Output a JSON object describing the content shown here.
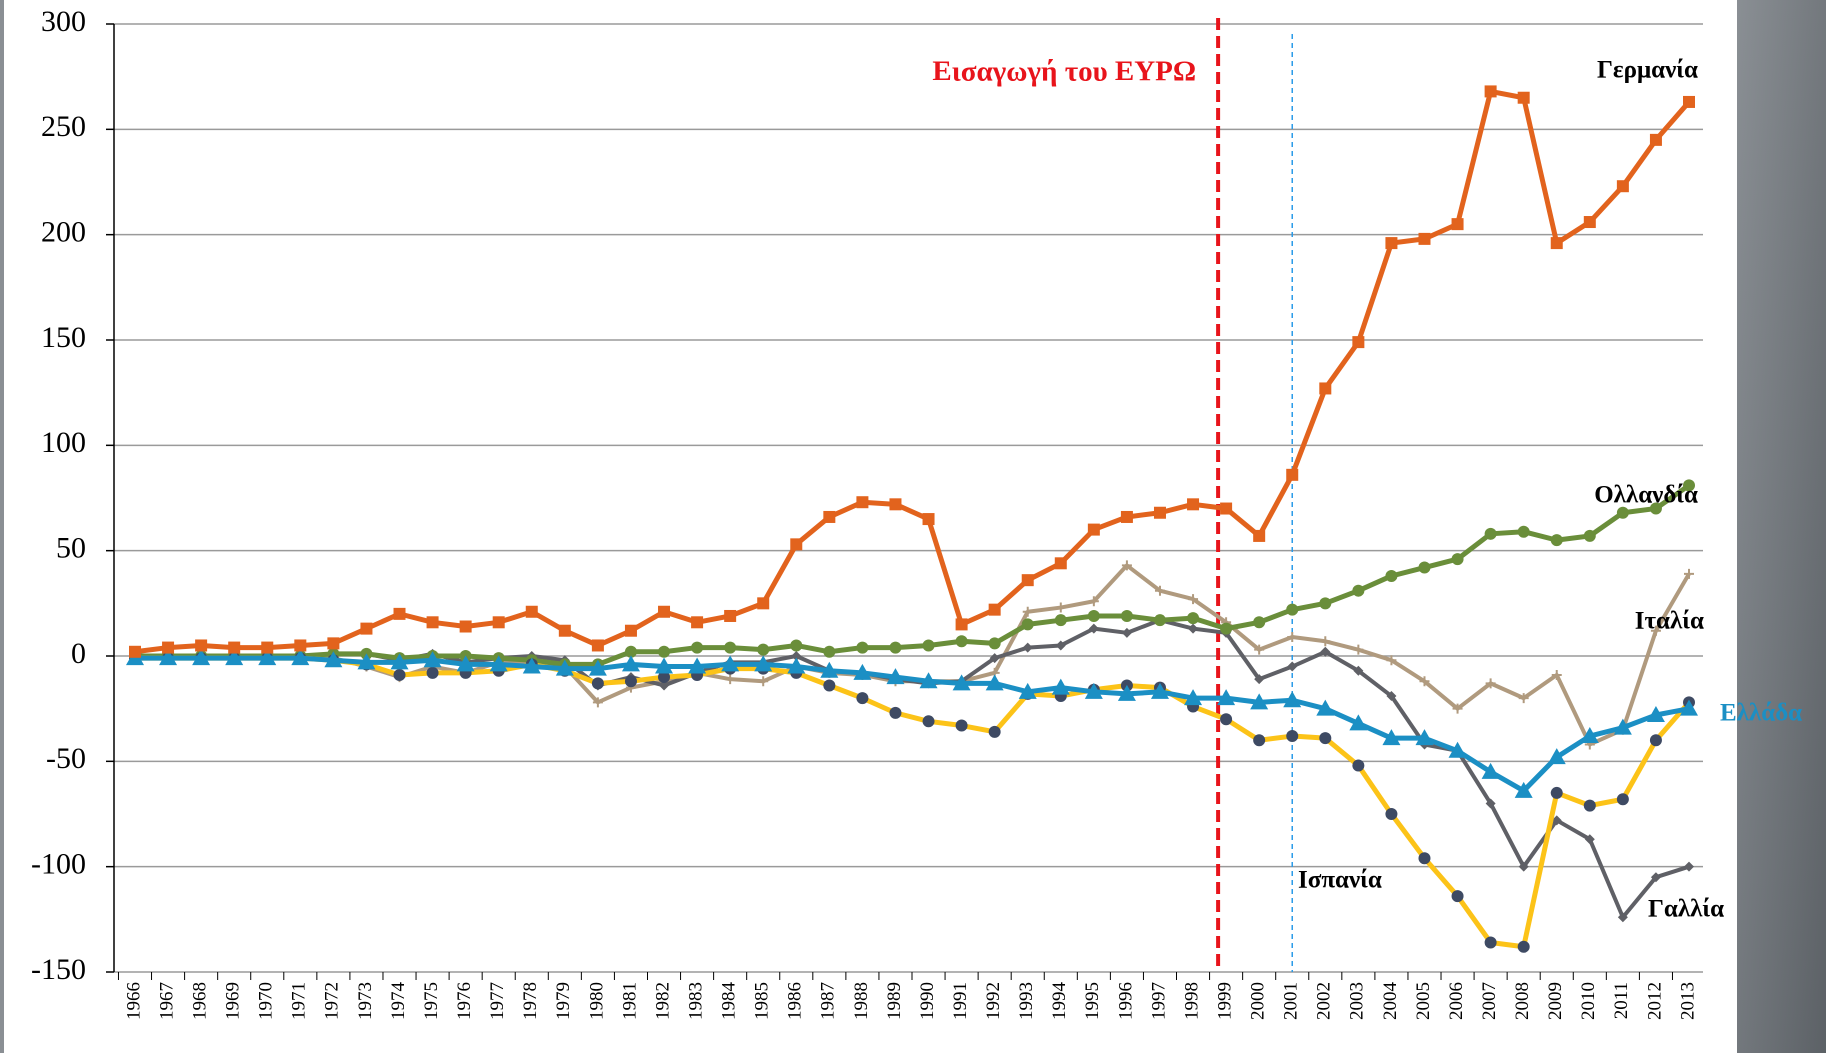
{
  "chart_data": {
    "type": "line",
    "categories": [
      "1966",
      "1967",
      "1968",
      "1969",
      "1970",
      "1971",
      "1972",
      "1973",
      "1974",
      "1975",
      "1976",
      "1977",
      "1978",
      "1979",
      "1980",
      "1981",
      "1982",
      "1983",
      "1984",
      "1985",
      "1986",
      "1987",
      "1988",
      "1989",
      "1990",
      "1991",
      "1992",
      "1993",
      "1994",
      "1995",
      "1996",
      "1997",
      "1998",
      "1999",
      "2000",
      "2001",
      "2002",
      "2003",
      "2004",
      "2005",
      "2006",
      "2007",
      "2008",
      "2009",
      "2010",
      "2011",
      "2012",
      "2013"
    ],
    "ylim": [
      -150,
      300
    ],
    "yticks": [
      -150,
      -100,
      -50,
      0,
      50,
      100,
      150,
      200,
      250,
      300
    ],
    "grid": true,
    "annotations": [
      {
        "text": "Εισαγωγή του ΕΥΡΩ",
        "x": "1999",
        "color": "#e8141b",
        "style": "dashed"
      }
    ],
    "vlines": [
      {
        "x": "2001",
        "color": "#2a9ae8",
        "style": "dashed"
      }
    ],
    "series": [
      {
        "name": "Γερμανία",
        "color": "#e2631d",
        "marker": "square",
        "marker_color": "#e2631d",
        "label_color": "#000000",
        "values": [
          2,
          4,
          5,
          4,
          4,
          5,
          6,
          13,
          20,
          16,
          14,
          16,
          21,
          12,
          5,
          12,
          21,
          16,
          19,
          25,
          53,
          66,
          73,
          72,
          65,
          15,
          22,
          36,
          44,
          60,
          66,
          68,
          72,
          70,
          57,
          86,
          127,
          149,
          196,
          198,
          205,
          268,
          265,
          196,
          206,
          223,
          245,
          263
        ]
      },
      {
        "name": "Ολλανδία",
        "color": "#6a8e3a",
        "marker": "circle",
        "marker_color": "#6a8e3a",
        "label_color": "#000000",
        "values": [
          0,
          0,
          0,
          0,
          0,
          0,
          1,
          1,
          -1,
          0,
          0,
          -1,
          -2,
          -4,
          -4,
          2,
          2,
          4,
          4,
          3,
          5,
          2,
          4,
          4,
          5,
          7,
          6,
          15,
          17,
          19,
          19,
          17,
          18,
          13,
          16,
          22,
          25,
          31,
          38,
          42,
          46,
          58,
          59,
          55,
          57,
          68,
          70,
          81
        ]
      },
      {
        "name": "Ιταλία",
        "color": "#b09a7e",
        "marker": "plus",
        "marker_color": "#b09a7e",
        "label_color": "#000000",
        "values": [
          0,
          0,
          0,
          0,
          0,
          0,
          -1,
          -5,
          -10,
          -5,
          -8,
          -3,
          -3,
          -5,
          -22,
          -15,
          -12,
          -8,
          -11,
          -12,
          -5,
          -8,
          -9,
          -12,
          -12,
          -12,
          -8,
          21,
          23,
          26,
          43,
          31,
          27,
          16,
          3,
          9,
          7,
          3,
          -2,
          -12,
          -25,
          -13,
          -20,
          -9,
          -42,
          -35,
          12,
          39
        ]
      },
      {
        "name": "Ελλάδα",
        "color": "#1b8fc4",
        "marker": "triangle",
        "marker_color": "#1b8fc4",
        "label_color": "#1b8fc4",
        "values": [
          -1,
          -1,
          -1,
          -1,
          -1,
          -1,
          -2,
          -3,
          -3,
          -2,
          -4,
          -4,
          -5,
          -6,
          -6,
          -4,
          -5,
          -5,
          -4,
          -4,
          -5,
          -7,
          -8,
          -10,
          -12,
          -13,
          -13,
          -17,
          -15,
          -17,
          -18,
          -17,
          -20,
          -20,
          -22,
          -21,
          -25,
          -32,
          -39,
          -39,
          -45,
          -55,
          -64,
          -48,
          -38,
          -34,
          -28,
          -25
        ]
      },
      {
        "name": "Ισπανία",
        "color": "#fcc318",
        "marker": "circle",
        "marker_color": "#3e4a63",
        "label_color": "#000000",
        "values": [
          -1,
          -1,
          -1,
          -1,
          -1,
          -1,
          -2,
          -4,
          -9,
          -8,
          -8,
          -7,
          -4,
          -7,
          -13,
          -12,
          -10,
          -9,
          -6,
          -6,
          -8,
          -14,
          -20,
          -27,
          -31,
          -33,
          -36,
          -18,
          -19,
          -16,
          -14,
          -15,
          -24,
          -30,
          -40,
          -38,
          -39,
          -52,
          -75,
          -96,
          -114,
          -136,
          -138,
          -65,
          -71,
          -68,
          -40,
          -22
        ]
      },
      {
        "name": "Γαλλία",
        "color": "#5f6066",
        "marker": "diamond",
        "marker_color": "#5f6066",
        "label_color": "#000000",
        "values": [
          0,
          0,
          0,
          0,
          0,
          0,
          1,
          1,
          -2,
          1,
          -3,
          -1,
          0,
          -2,
          -14,
          -10,
          -14,
          -8,
          -3,
          -3,
          0,
          -7,
          -8,
          -11,
          -13,
          -12,
          -1,
          4,
          5,
          13,
          11,
          17,
          13,
          11,
          -11,
          -5,
          2,
          -7,
          -19,
          -42,
          -45,
          -70,
          -100,
          -78,
          -87,
          -124,
          -105,
          -100
        ]
      }
    ]
  }
}
